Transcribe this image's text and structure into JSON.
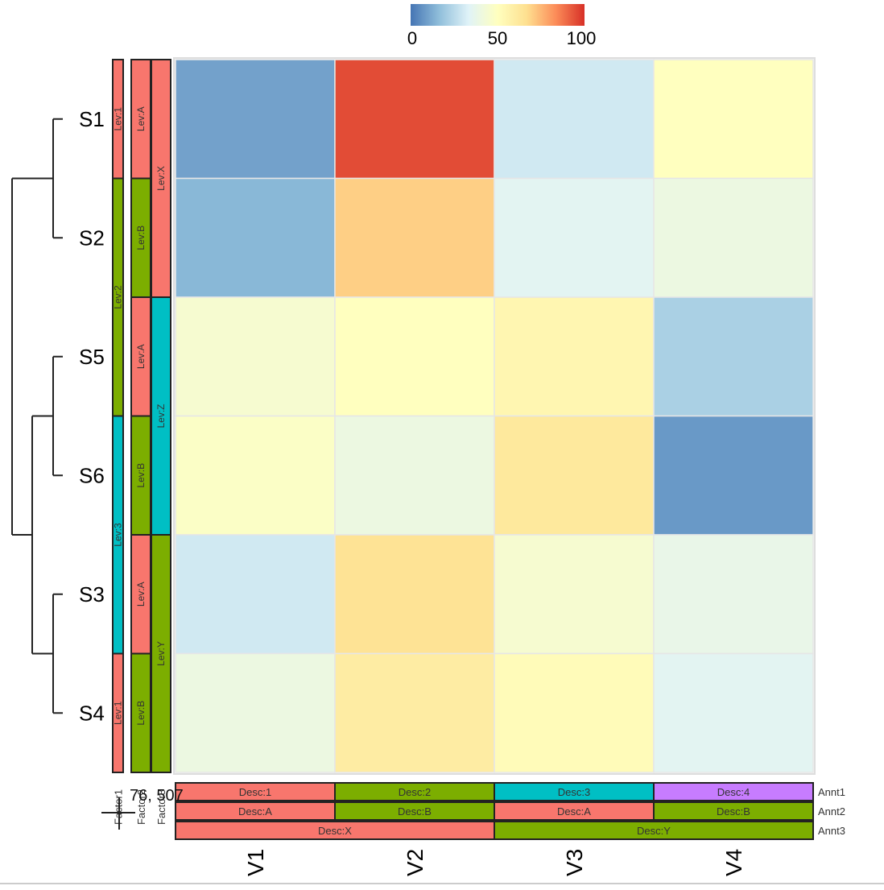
{
  "chart_data": {
    "type": "heatmap",
    "rows": [
      "S1",
      "S2",
      "S5",
      "S6",
      "S3",
      "S4"
    ],
    "columns": [
      "V1",
      "V2",
      "V3",
      "V4"
    ],
    "values": [
      [
        10,
        95,
        30,
        50
      ],
      [
        15,
        70,
        35,
        40
      ],
      [
        45,
        50,
        55,
        22
      ],
      [
        48,
        40,
        62,
        8
      ],
      [
        30,
        65,
        45,
        38
      ],
      [
        40,
        60,
        52,
        35
      ]
    ],
    "color_scale": {
      "min": 0,
      "max": 100,
      "colors": [
        "#4575b4",
        "#91bfdb",
        "#e0f3f8",
        "#ffffbf",
        "#fee090",
        "#fc8d59",
        "#d73027"
      ],
      "ticks": [
        "0",
        "50",
        "100"
      ]
    },
    "row_annotations": [
      {
        "name": "Factor1",
        "labels": [
          "Lev:1",
          "Lev:2",
          "Lev:2",
          "Lev:3",
          "Lev:3",
          "Lev:1"
        ]
      },
      {
        "name": "Factor2",
        "labels": [
          "Lev:A",
          "Lev:B",
          "Lev:A",
          "Lev:B",
          "Lev:A",
          "Lev:B"
        ]
      },
      {
        "name": "Factor3",
        "labels": [
          "Lev:X",
          "Lev:X",
          "Lev:Z",
          "Lev:Z",
          "Lev:Y",
          "Lev:Y"
        ]
      }
    ],
    "col_annotations": [
      {
        "name": "Annt1",
        "labels": [
          "Desc:1",
          "Desc:2",
          "Desc:3",
          "Desc:4"
        ]
      },
      {
        "name": "Annt2",
        "labels": [
          "Desc:A",
          "Desc:B",
          "Desc:A",
          "Desc:B"
        ]
      },
      {
        "name": "Annt3",
        "labels": [
          "Desc:X",
          "Desc:X",
          "Desc:Y",
          "Desc:Y"
        ]
      }
    ],
    "annotation_colors": {
      "Lev:1": "#f8766d",
      "Lev:2": "#7cae00",
      "Lev:3": "#00bfc4",
      "Lev:A": "#f8766d",
      "Lev:B": "#7cae00",
      "Lev:X": "#f8766d",
      "Lev:Y": "#7cae00",
      "Lev:Z": "#00bfc4",
      "Desc:1": "#f8766d",
      "Desc:2": "#7cae00",
      "Desc:3": "#00bfc4",
      "Desc:4": "#c77cff",
      "Desc:A": "#f8766d",
      "Desc:B": "#7cae00",
      "Desc:X": "#f8766d",
      "Desc:Y": "#7cae00"
    },
    "dendrogram": "((S1,S2),((S5,S6),(S3,S4)))",
    "coordinate_readout": "76, 507"
  }
}
